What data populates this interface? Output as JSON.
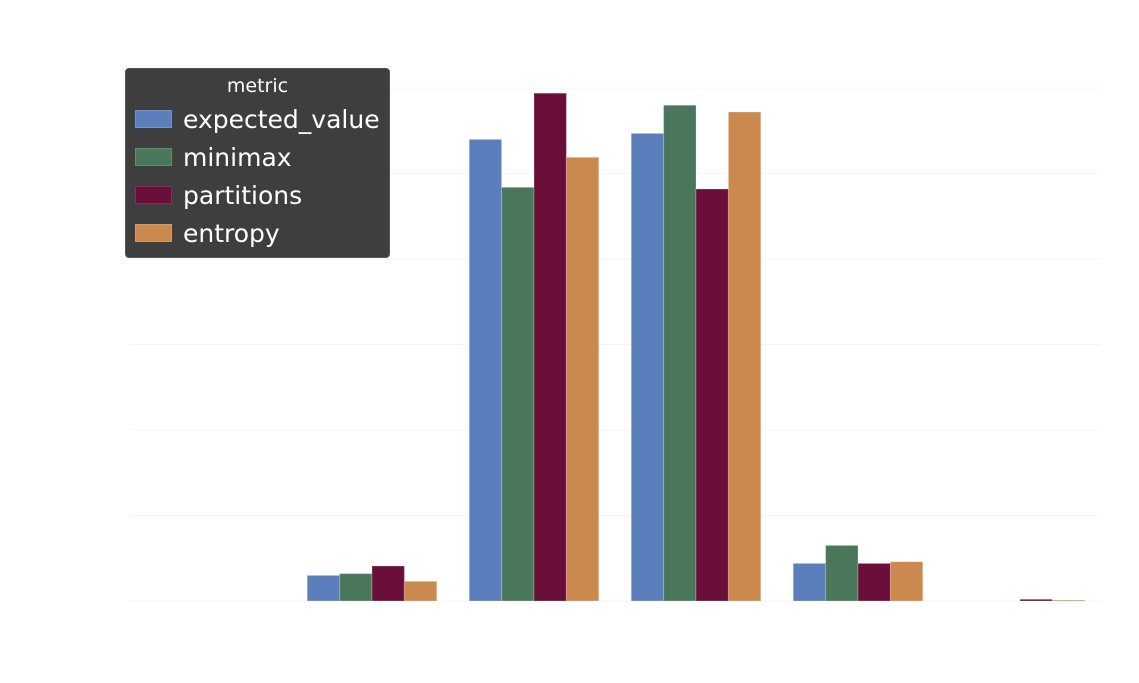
{
  "chart_data": {
    "type": "bar",
    "title": "",
    "xlabel": "",
    "ylabel": "",
    "categories": [
      "",
      "",
      "",
      "",
      "",
      ""
    ],
    "series": [
      {
        "name": "expected_value",
        "color": "#5b7ebd",
        "values": [
          0,
          0.03,
          0.54,
          0.547,
          0.044,
          0
        ]
      },
      {
        "name": "minimax",
        "color": "#4a765a",
        "values": [
          0,
          0.032,
          0.484,
          0.58,
          0.065,
          0
        ]
      },
      {
        "name": "partitions",
        "color": "#6a0e3a",
        "values": [
          0,
          0.041,
          0.594,
          0.482,
          0.044,
          0.002
        ]
      },
      {
        "name": "entropy",
        "color": "#cc894e",
        "values": [
          0,
          0.023,
          0.519,
          0.572,
          0.046,
          0.001
        ]
      }
    ],
    "ylim": [
      0,
      0.62
    ],
    "grid": true,
    "legend": {
      "title": "metric",
      "position": "top-left"
    }
  }
}
